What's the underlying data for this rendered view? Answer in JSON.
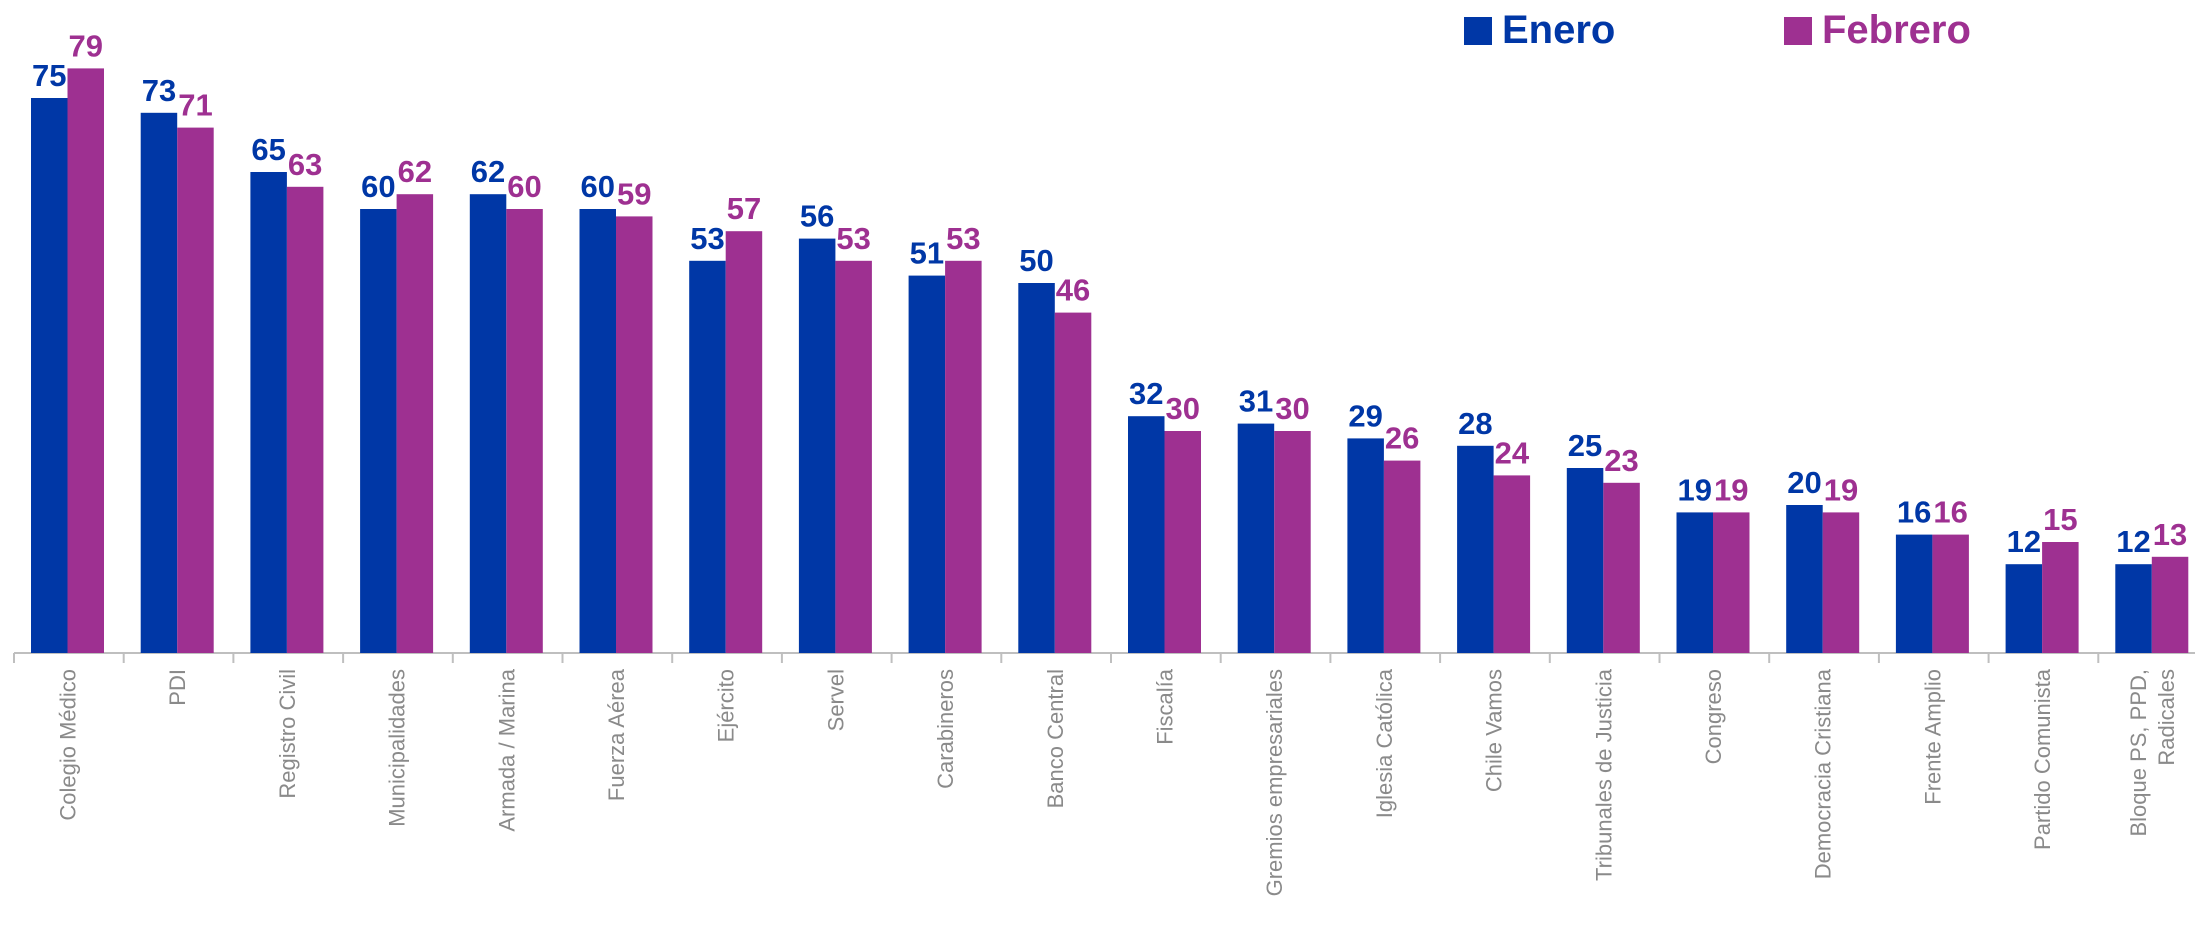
{
  "chart_data": {
    "type": "bar",
    "categories": [
      "Colegio Médico",
      "PDI",
      "Registro Civil",
      "Municipalidades",
      "Armada / Marina",
      "Fuerza Aérea",
      "Ejército",
      "Servel",
      "Carabineros",
      "Banco Central",
      "Fiscalía",
      "Gremios empresariales",
      "Iglesia Católica",
      "Chile Vamos",
      "Tribunales de Justicia",
      "Congreso",
      "Democracia Cristiana",
      "Frente Amplio",
      "Partido Comunista",
      "Bloque PS, PPD, Radicales"
    ],
    "category_lines": [
      [
        "Colegio Médico"
      ],
      [
        "PDI"
      ],
      [
        "Registro Civil"
      ],
      [
        "Municipalidades"
      ],
      [
        "Armada / Marina"
      ],
      [
        "Fuerza Aérea"
      ],
      [
        "Ejército"
      ],
      [
        "Servel"
      ],
      [
        "Carabineros"
      ],
      [
        "Banco Central"
      ],
      [
        "Fiscalía"
      ],
      [
        "Gremios empresariales"
      ],
      [
        "Iglesia Católica"
      ],
      [
        "Chile Vamos"
      ],
      [
        "Tribunales de Justicia"
      ],
      [
        "Congreso"
      ],
      [
        "Democracia Cristiana"
      ],
      [
        "Frente Amplio"
      ],
      [
        "Partido Comunista"
      ],
      [
        "Bloque PS, PPD,",
        "Radicales"
      ]
    ],
    "series": [
      {
        "name": "Enero",
        "color": "#0037A6",
        "values": [
          75,
          73,
          65,
          60,
          62,
          60,
          53,
          56,
          51,
          50,
          32,
          31,
          29,
          28,
          25,
          19,
          20,
          16,
          12,
          12
        ]
      },
      {
        "name": "Febrero",
        "color": "#9E3091",
        "values": [
          79,
          71,
          63,
          62,
          60,
          59,
          57,
          53,
          53,
          46,
          30,
          30,
          26,
          24,
          23,
          19,
          19,
          16,
          15,
          13
        ]
      }
    ],
    "ylim": [
      0,
      85
    ],
    "title": "",
    "xlabel": "",
    "ylabel": "",
    "grid": false,
    "legend_position": "top-right",
    "axis_color": "#bfbfbf"
  }
}
